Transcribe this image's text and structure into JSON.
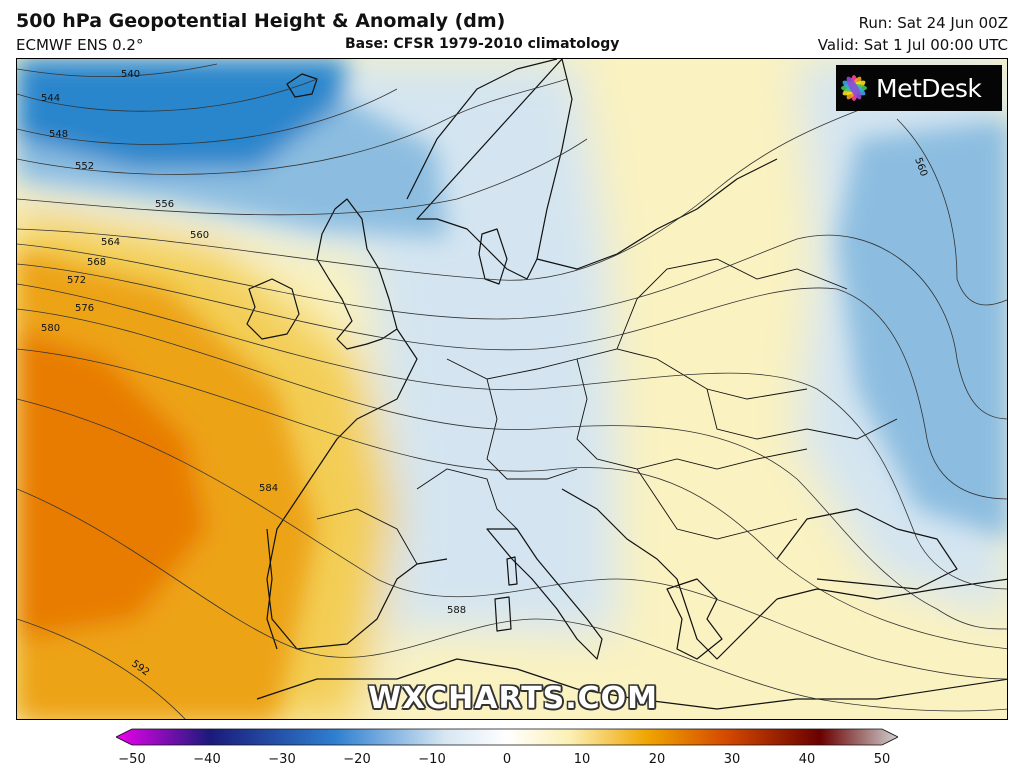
{
  "header": {
    "title": "500 hPa Geopotential Height & Anomaly (dm)",
    "model": "ECMWF ENS 0.2°",
    "base": "Base: CFSR 1979-2010 climatology",
    "run": "Run: Sat 24 Jun 00Z",
    "valid": "Valid: Sat 1 Jul 00:00 UTC"
  },
  "logo": {
    "text": "MetDesk",
    "icon": "metdesk-flower-icon"
  },
  "watermark": "WXCHARTS.COM",
  "contour_labels": [
    "540",
    "544",
    "548",
    "552",
    "556",
    "560",
    "564",
    "568",
    "572",
    "576",
    "580",
    "584",
    "588",
    "592",
    "560"
  ],
  "colorbar": {
    "ticks": [
      "−50",
      "−40",
      "−30",
      "−20",
      "−10",
      "0",
      "10",
      "20",
      "30",
      "40",
      "50"
    ],
    "colors": {
      "neg_end": "#ee00ee",
      "deep_neg": "#1a1a7a",
      "neg_mid": "#2e7fd0",
      "neg_light": "#d6e6f2",
      "zero": "#ffffff",
      "pos_light": "#fbf0b4",
      "pos_mid": "#f0a400",
      "pos_strong": "#d44a00",
      "pos_deep": "#6a0000",
      "pos_end": "#d0d0d0"
    }
  },
  "map_colors": {
    "cold_core": "#2c86cc",
    "cold": "#8cbde0",
    "cool": "#d4e5f1",
    "neutral": "#f3f6f8",
    "warm": "#faf2c0",
    "warmer": "#f3cd55",
    "hot": "#eda318",
    "hottest": "#e87c00"
  }
}
